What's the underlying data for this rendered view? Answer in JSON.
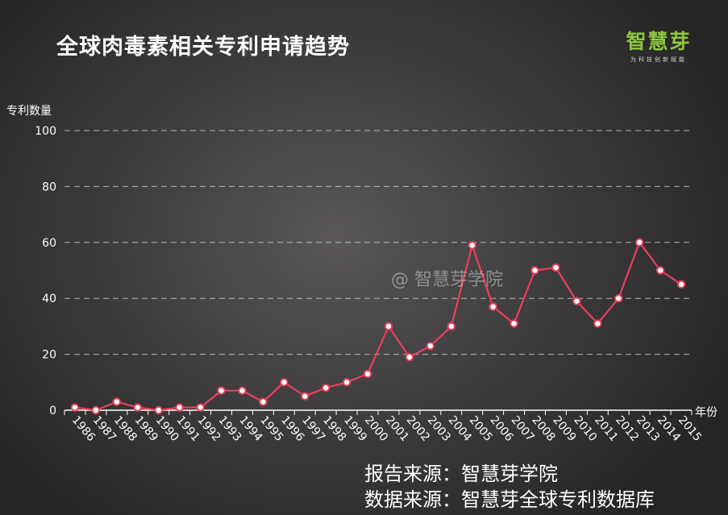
{
  "title": "全球肉毒素相关专利申请趋势",
  "logo": {
    "name": "智慧芽",
    "tagline": "为科技创新赋能"
  },
  "watermark": "@ 智慧芽学院",
  "sources": [
    "报告来源：智慧芽学院",
    "数据来源：智慧芽全球专利数据库"
  ],
  "colors": {
    "line": "#e8405a",
    "marker_fill": "#ffffff",
    "grid": "#d9d9d9",
    "logo": "#8cc63e"
  },
  "chart_data": {
    "type": "line",
    "title": "全球肉毒素相关专利申请趋势",
    "xlabel": "年份",
    "ylabel": "专利数量",
    "ylim": [
      0,
      100
    ],
    "yticks": [
      0,
      20,
      40,
      60,
      80,
      100
    ],
    "grid": "horizontal dashed",
    "categories": [
      "1986",
      "1987",
      "1988",
      "1989",
      "1990",
      "1991",
      "1992",
      "1993",
      "1994",
      "1995",
      "1996",
      "1997",
      "1998",
      "1999",
      "2000",
      "2001",
      "2002",
      "2003",
      "2004",
      "2005",
      "2006",
      "2007",
      "2008",
      "2009",
      "2010",
      "2011",
      "2012",
      "2013",
      "2014",
      "2015"
    ],
    "series": [
      {
        "values": [
          1,
          0,
          3,
          1,
          0,
          1,
          1,
          7,
          7,
          3,
          10,
          5,
          8,
          10,
          13,
          30,
          19,
          23,
          30,
          59,
          37,
          31,
          50,
          51,
          39,
          31,
          40,
          60,
          50,
          45
        ]
      }
    ]
  }
}
